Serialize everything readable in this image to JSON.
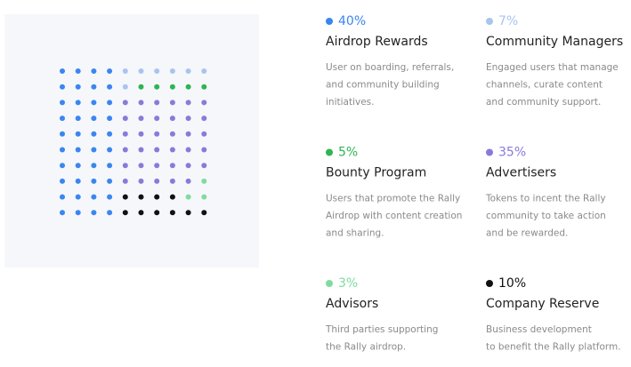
{
  "chart_data": {
    "type": "waffle",
    "categories": [
      "Airdrop Rewards",
      "Community Managers",
      "Bounty Program",
      "Advertisers",
      "Advisors",
      "Company Reserve"
    ],
    "values": [
      40,
      7,
      5,
      35,
      3,
      10
    ],
    "value_labels": [
      "40%",
      "7%",
      "5%",
      "35%",
      "3%",
      "10%"
    ],
    "colors": [
      "#3a86f0",
      "#a9c4ee",
      "#2eb552",
      "#8a79dd",
      "#7fdca0",
      "#111111"
    ],
    "descriptions": [
      [
        "User on boarding, referrals,",
        "and community building",
        "initiatives."
      ],
      [
        "Engaged users that manage",
        "channels, curate content",
        "and community support."
      ],
      [
        "Users that promote the Rally",
        "Airdrop with content creation",
        "and sharing."
      ],
      [
        "Tokens to incent the Rally",
        "community to take action",
        "and be rewarded."
      ],
      [
        "Third parties supporting",
        "the Rally airdrop."
      ],
      [
        "Business development",
        "to benefit the Rally platform."
      ]
    ]
  }
}
